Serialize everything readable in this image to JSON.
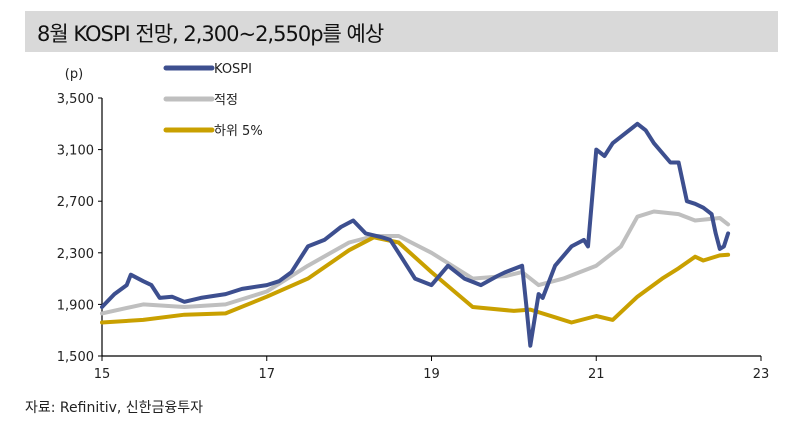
{
  "title": "8월 KOSPI 전망, 2,300~2,550p를 예상",
  "source": "자료: Refinitiv, 신한금융투자",
  "chart_data": {
    "type": "line",
    "ylabel": "(p)",
    "ylim": [
      1500,
      3500
    ],
    "xlim": [
      15,
      23
    ],
    "yticks": [
      1500,
      1900,
      2300,
      2700,
      3100,
      3500
    ],
    "ytick_labels": [
      "1,500",
      "1,900",
      "2,300",
      "2,700",
      "3,100",
      "3,500"
    ],
    "xticks": [
      15,
      17,
      19,
      21,
      23
    ],
    "xtick_labels": [
      "15",
      "17",
      "19",
      "21",
      "23"
    ],
    "grid": false,
    "legend": "top-left",
    "series": [
      {
        "name": "KOSPI",
        "color": "#3d4f8f",
        "x": [
          15.0,
          15.15,
          15.3,
          15.35,
          15.5,
          15.6,
          15.7,
          15.85,
          16.0,
          16.2,
          16.4,
          16.5,
          16.7,
          16.8,
          17.0,
          17.15,
          17.3,
          17.5,
          17.7,
          17.9,
          18.05,
          18.2,
          18.4,
          18.5,
          18.6,
          18.7,
          18.8,
          19.0,
          19.2,
          19.4,
          19.6,
          19.8,
          19.9,
          20.1,
          20.15,
          20.2,
          20.3,
          20.35,
          20.5,
          20.7,
          20.85,
          20.9,
          21.0,
          21.1,
          21.2,
          21.3,
          21.5,
          21.6,
          21.7,
          21.9,
          22.0,
          22.1,
          22.2,
          22.3,
          22.4,
          22.45,
          22.5,
          22.55,
          22.6
        ],
        "y": [
          1880,
          1980,
          2050,
          2130,
          2080,
          2050,
          1950,
          1960,
          1920,
          1950,
          1970,
          1980,
          2020,
          2030,
          2050,
          2080,
          2150,
          2350,
          2400,
          2500,
          2550,
          2450,
          2420,
          2400,
          2300,
          2200,
          2100,
          2050,
          2200,
          2100,
          2050,
          2120,
          2150,
          2200,
          1900,
          1580,
          1980,
          1950,
          2200,
          2350,
          2400,
          2350,
          3100,
          3050,
          3150,
          3200,
          3300,
          3250,
          3150,
          3000,
          3000,
          2700,
          2680,
          2650,
          2600,
          2450,
          2330,
          2350,
          2450
        ]
      },
      {
        "name": "적정",
        "color": "#bfbfbf",
        "x": [
          15.0,
          15.5,
          16.0,
          16.5,
          17.0,
          17.5,
          18.0,
          18.3,
          18.6,
          19.0,
          19.5,
          19.9,
          20.1,
          20.3,
          20.6,
          21.0,
          21.3,
          21.5,
          21.7,
          22.0,
          22.2,
          22.5,
          22.6
        ],
        "y": [
          1830,
          1900,
          1880,
          1900,
          2000,
          2200,
          2380,
          2430,
          2430,
          2300,
          2100,
          2120,
          2150,
          2050,
          2100,
          2200,
          2350,
          2580,
          2620,
          2600,
          2550,
          2570,
          2520
        ]
      },
      {
        "name": "하위 5%",
        "color": "#c9a000",
        "x": [
          15.0,
          15.5,
          16.0,
          16.5,
          17.0,
          17.5,
          18.0,
          18.3,
          18.6,
          19.0,
          19.5,
          20.0,
          20.2,
          20.5,
          20.7,
          21.0,
          21.2,
          21.5,
          21.8,
          22.0,
          22.2,
          22.3,
          22.5,
          22.6
        ],
        "y": [
          1760,
          1780,
          1820,
          1830,
          1960,
          2100,
          2320,
          2420,
          2380,
          2150,
          1880,
          1850,
          1860,
          1800,
          1760,
          1810,
          1780,
          1960,
          2100,
          2180,
          2270,
          2240,
          2280,
          2285
        ]
      }
    ]
  }
}
